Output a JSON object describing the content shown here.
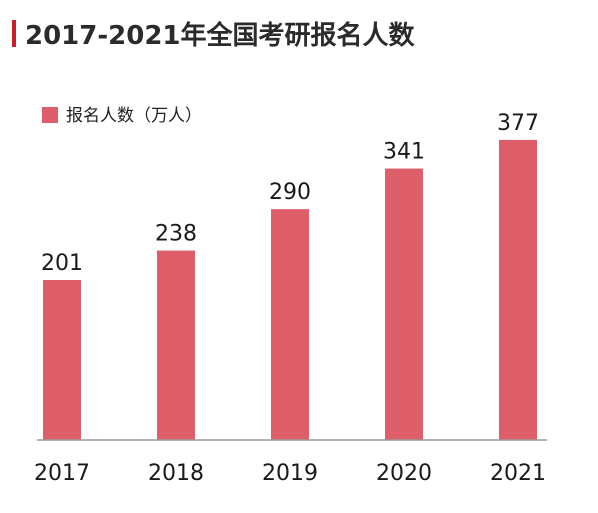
{
  "chart_data": {
    "type": "bar",
    "title": "2017-2021年全国考研报名人数",
    "categories": [
      "2017",
      "2018",
      "2019",
      "2020",
      "2021"
    ],
    "series": [
      {
        "name": "报名人数（万人）",
        "values": [
          201,
          238,
          290,
          341,
          377
        ]
      }
    ],
    "value_labels": [
      "201",
      "238",
      "290",
      "341",
      "377"
    ],
    "ylim": [
      0,
      400
    ],
    "grid": false,
    "legend_position": "top-left",
    "colors": {
      "bar": "#de5f69",
      "accent": "#c8202a",
      "axis": "#9a9a9a"
    }
  }
}
